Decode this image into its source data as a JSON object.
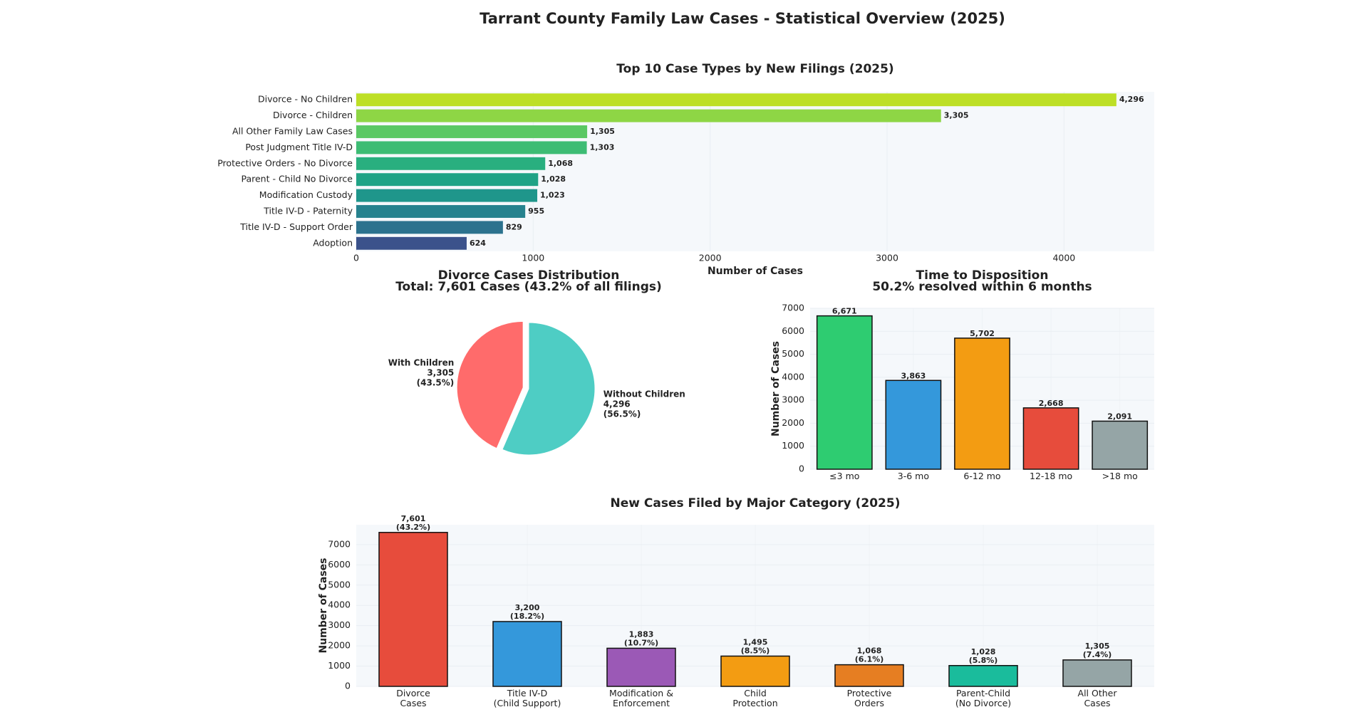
{
  "title": "Tarrant County Family Law Cases - Statistical Overview (2025)",
  "chart_data": [
    {
      "type": "barh",
      "title": "Top 10 Case Types by New Filings (2025)",
      "categories": [
        "Divorce - No Children",
        "Divorce - Children",
        "All Other Family Law Cases",
        "Post Judgment Title IV-D",
        "Protective Orders - No Divorce",
        "Parent - Child No Divorce",
        "Modification Custody",
        "Title IV-D - Paternity",
        "Title IV-D - Support Order",
        "Adoption"
      ],
      "values": [
        4296,
        3305,
        1305,
        1303,
        1068,
        1028,
        1023,
        955,
        829,
        624
      ],
      "value_labels": [
        "4,296",
        "3,305",
        "1,305",
        "1,303",
        "1,068",
        "1,028",
        "1,023",
        "955",
        "829",
        "624"
      ],
      "colors": [
        "#bddf26",
        "#8ed645",
        "#5ac864",
        "#3dbc74",
        "#29af7f",
        "#20a386",
        "#1f968b",
        "#26828e",
        "#2c728e",
        "#3b528b"
      ],
      "xlabel": "Number of Cases",
      "xlim": [
        0,
        4510
      ],
      "xticks": [
        0,
        1000,
        2000,
        3000,
        4000
      ],
      "grid": true
    },
    {
      "type": "pie",
      "title": "Divorce Cases Distribution",
      "subtitle": "Total: 7,601 Cases (43.2% of all filings)",
      "categories": [
        "Without Children",
        "With Children"
      ],
      "values": [
        4296,
        3305
      ],
      "value_labels": [
        "4,296",
        "3,305"
      ],
      "percent_labels": [
        "(56.5%)",
        "(43.5%)"
      ],
      "colors": [
        "#4ecdc4",
        "#ff6b6b"
      ]
    },
    {
      "type": "bar",
      "title": "Time to Disposition",
      "subtitle": "50.2% resolved within 6 months",
      "categories": [
        "≤3 mo",
        "3-6 mo",
        "6-12 mo",
        "12-18 mo",
        ">18 mo"
      ],
      "values": [
        6671,
        3863,
        5702,
        2668,
        2091
      ],
      "value_labels": [
        "6,671",
        "3,863",
        "5,702",
        "2,668",
        "2,091"
      ],
      "colors": [
        "#2ecc71",
        "#3498db",
        "#f39c12",
        "#e74c3c",
        "#95a5a6"
      ],
      "ylabel": "Number of Cases",
      "ylim": [
        0,
        7000
      ],
      "yticks": [
        0,
        1000,
        2000,
        3000,
        4000,
        5000,
        6000,
        7000
      ],
      "grid": true
    },
    {
      "type": "bar",
      "title": "New Cases Filed by Major Category (2025)",
      "categories": [
        "Divorce\nCases",
        "Title IV-D\n(Child Support)",
        "Modification &\nEnforcement",
        "Child\nProtection",
        "Protective\nOrders",
        "Parent-Child\n(No Divorce)",
        "All Other\nCases"
      ],
      "values": [
        7601,
        3200,
        1883,
        1495,
        1068,
        1028,
        1305
      ],
      "value_labels": [
        "7,601",
        "3,200",
        "1,883",
        "1,495",
        "1,068",
        "1,028",
        "1,305"
      ],
      "percent_labels": [
        "(43.2%)",
        "(18.2%)",
        "(10.7%)",
        "(8.5%)",
        "(6.1%)",
        "(5.8%)",
        "(7.4%)"
      ],
      "colors": [
        "#e74c3c",
        "#3498db",
        "#9b59b6",
        "#f39c12",
        "#e67e22",
        "#1abc9c",
        "#95a5a6"
      ],
      "ylabel": "Number of Cases",
      "ylim": [
        0,
        7980
      ],
      "yticks": [
        0,
        1000,
        2000,
        3000,
        4000,
        5000,
        6000,
        7000
      ],
      "grid": true
    }
  ]
}
